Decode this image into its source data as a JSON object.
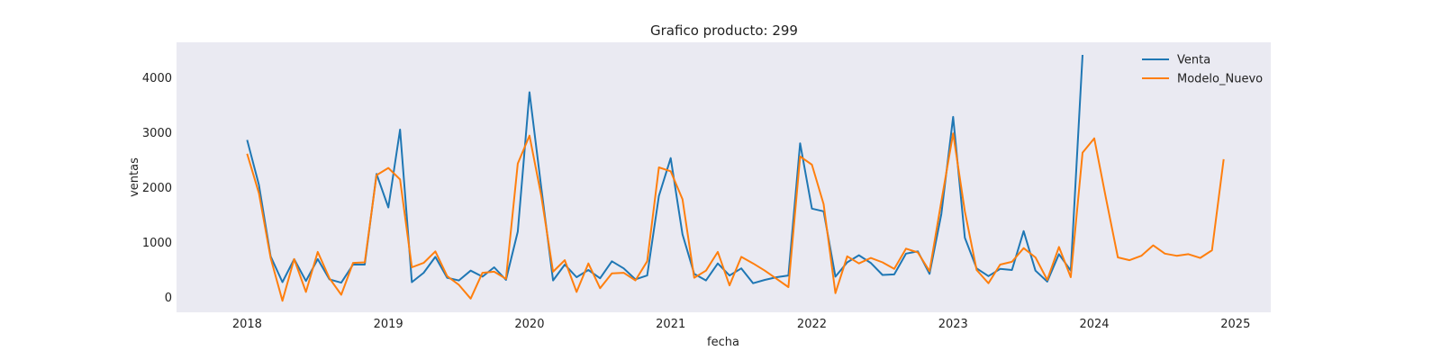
{
  "chart_data": {
    "type": "line",
    "title": "Grafico producto: 299",
    "xlabel": "fecha",
    "ylabel": "ventas",
    "x_ticks": [
      "2018",
      "2019",
      "2020",
      "2021",
      "2022",
      "2023",
      "2024",
      "2025"
    ],
    "y_ticks": [
      "0",
      "1000",
      "2000",
      "3000",
      "4000"
    ],
    "xlim": [
      "2017-07-01",
      "2025-04-01"
    ],
    "ylim": [
      -270,
      4650
    ],
    "grid": false,
    "legend_position": "top-right",
    "background_color": "#eaeaf2",
    "series": [
      {
        "name": "Venta",
        "color": "#1f77b4",
        "start": "2018-01",
        "values": [
          2870,
          2050,
          750,
          280,
          700,
          300,
          700,
          330,
          270,
          600,
          600,
          2250,
          1640,
          3060,
          280,
          450,
          740,
          360,
          310,
          490,
          380,
          550,
          320,
          1200,
          3740,
          2000,
          310,
          600,
          370,
          500,
          350,
          660,
          530,
          330,
          400,
          1850,
          2540,
          1150,
          430,
          310,
          620,
          400,
          530,
          260,
          320,
          370,
          400,
          2810,
          1620,
          1570,
          380,
          640,
          770,
          630,
          410,
          420,
          800,
          840,
          430,
          1520,
          3290,
          1090,
          530,
          390,
          520,
          500,
          1210,
          490,
          290,
          790,
          490,
          4420
        ]
      },
      {
        "name": "Modelo_Nuevo",
        "color": "#ff7f0e",
        "start": "2018-01",
        "values": [
          2620,
          1900,
          720,
          -60,
          700,
          100,
          830,
          350,
          50,
          630,
          640,
          2230,
          2360,
          2150,
          550,
          630,
          840,
          390,
          230,
          -20,
          450,
          470,
          340,
          2440,
          2950,
          1850,
          470,
          680,
          100,
          620,
          170,
          440,
          450,
          310,
          660,
          2370,
          2300,
          1790,
          360,
          490,
          830,
          220,
          740,
          620,
          490,
          340,
          190,
          2570,
          2420,
          1700,
          80,
          750,
          620,
          720,
          640,
          520,
          890,
          820,
          480,
          1750,
          2990,
          1570,
          500,
          260,
          600,
          650,
          900,
          730,
          320,
          920,
          370,
          2640,
          2900,
          1800,
          730,
          680,
          760,
          950,
          800,
          760,
          790,
          720,
          860,
          2520
        ]
      }
    ]
  }
}
